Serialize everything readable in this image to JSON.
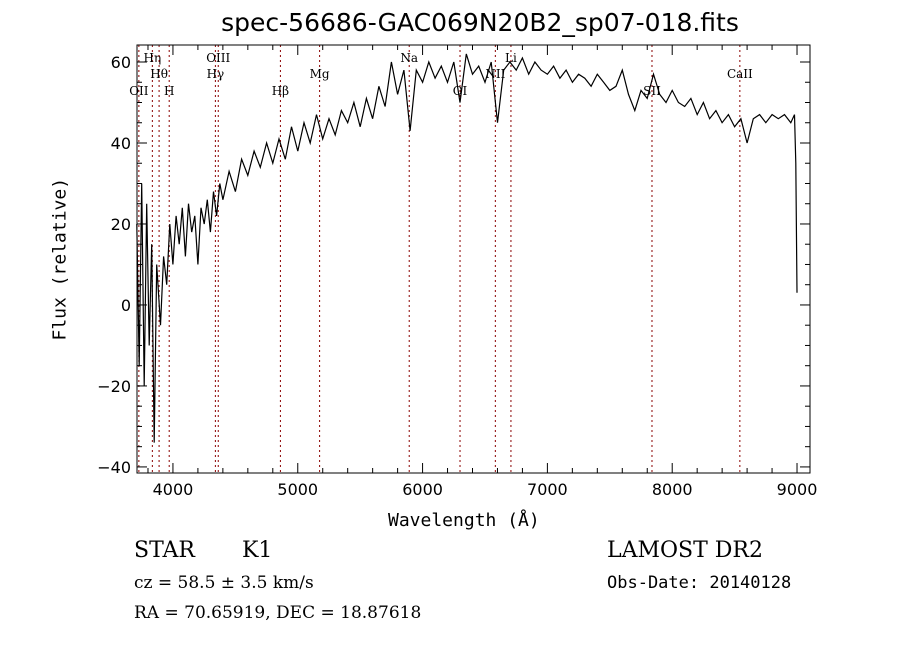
{
  "chart_data": {
    "type": "line",
    "title": "spec-56686-GAC069N20B2_sp07-018.fits",
    "xlabel": "Wavelength (Å)",
    "ylabel": "Flux (relative)",
    "xlim": [
      3712,
      9104
    ],
    "ylim": [
      -41.5,
      64.2
    ],
    "xticks": [
      4000,
      5000,
      6000,
      7000,
      8000,
      9000
    ],
    "yticks": [
      -40,
      -20,
      0,
      20,
      40,
      60
    ],
    "grid": false,
    "series": [
      {
        "name": "spectrum",
        "x": [
          3710,
          3730,
          3750,
          3770,
          3790,
          3810,
          3830,
          3850,
          3870,
          3900,
          3925,
          3950,
          3975,
          4000,
          4025,
          4050,
          4075,
          4100,
          4125,
          4150,
          4175,
          4200,
          4225,
          4250,
          4275,
          4300,
          4325,
          4350,
          4375,
          4400,
          4450,
          4500,
          4550,
          4600,
          4650,
          4700,
          4750,
          4800,
          4850,
          4900,
          4950,
          5000,
          5050,
          5100,
          5150,
          5200,
          5250,
          5300,
          5350,
          5400,
          5450,
          5500,
          5550,
          5600,
          5650,
          5700,
          5750,
          5800,
          5850,
          5900,
          5950,
          6000,
          6050,
          6100,
          6150,
          6200,
          6250,
          6300,
          6350,
          6400,
          6450,
          6500,
          6550,
          6600,
          6650,
          6700,
          6750,
          6800,
          6850,
          6900,
          6950,
          7000,
          7050,
          7100,
          7150,
          7200,
          7250,
          7300,
          7350,
          7400,
          7450,
          7500,
          7550,
          7600,
          7650,
          7700,
          7750,
          7800,
          7850,
          7900,
          7950,
          8000,
          8050,
          8100,
          8150,
          8200,
          8250,
          8300,
          8350,
          8400,
          8450,
          8500,
          8550,
          8600,
          8650,
          8700,
          8750,
          8800,
          8850,
          8900,
          8950,
          8980,
          8990,
          9000
        ],
        "y": [
          20,
          -15,
          30,
          -20,
          25,
          -10,
          15,
          -34,
          10,
          -5,
          12,
          5,
          20,
          10,
          22,
          15,
          24,
          12,
          25,
          18,
          22,
          10,
          24,
          20,
          26,
          18,
          28,
          22,
          30,
          26,
          33,
          28,
          36,
          32,
          38,
          34,
          40,
          35,
          41,
          36,
          44,
          38,
          45,
          40,
          47,
          41,
          46,
          42,
          48,
          45,
          50,
          44,
          51,
          46,
          54,
          49,
          60,
          52,
          58,
          43,
          58,
          55,
          60,
          56,
          59,
          55,
          60,
          50,
          62,
          57,
          59,
          55,
          60,
          45,
          58,
          60,
          58,
          61,
          57,
          60,
          58,
          57,
          59,
          56,
          58,
          55,
          57,
          56,
          54,
          57,
          55,
          53,
          54,
          58,
          52,
          48,
          53,
          51,
          57,
          52,
          50,
          53,
          50,
          49,
          51,
          47,
          50,
          46,
          48,
          45,
          47,
          44,
          46,
          40,
          46,
          47,
          45,
          47,
          46,
          47,
          45,
          47,
          35,
          3
        ]
      }
    ],
    "annotations": [
      {
        "label": "OII",
        "x": 3727,
        "row": 3
      },
      {
        "label": "Hη",
        "x": 3835,
        "row": 1
      },
      {
        "label": "Hθ",
        "x": 3889,
        "row": 2
      },
      {
        "label": "H",
        "x": 3970,
        "row": 3
      },
      {
        "label": "Hγ",
        "x": 4340,
        "row": 2
      },
      {
        "label": "OIII",
        "x": 4363,
        "row": 1
      },
      {
        "label": "Hβ",
        "x": 4861,
        "row": 3
      },
      {
        "label": "Mg",
        "x": 5175,
        "row": 2
      },
      {
        "label": "Na",
        "x": 5893,
        "row": 1
      },
      {
        "label": "OI",
        "x": 6300,
        "row": 3
      },
      {
        "label": "NII",
        "x": 6583,
        "row": 2
      },
      {
        "label": "Li",
        "x": 6708,
        "row": 1
      },
      {
        "label": "SII",
        "x": 7838,
        "row": 3
      },
      {
        "label": "CaII",
        "x": 8542,
        "row": 2
      }
    ]
  },
  "info": {
    "class": "STAR",
    "subclass": "K1",
    "cz": "cz = 58.5 ± 3.5 km/s",
    "radec": "RA =  70.65919, DEC =  18.87618",
    "survey": "LAMOST DR2",
    "obsdate": "Obs-Date: 20140128"
  }
}
